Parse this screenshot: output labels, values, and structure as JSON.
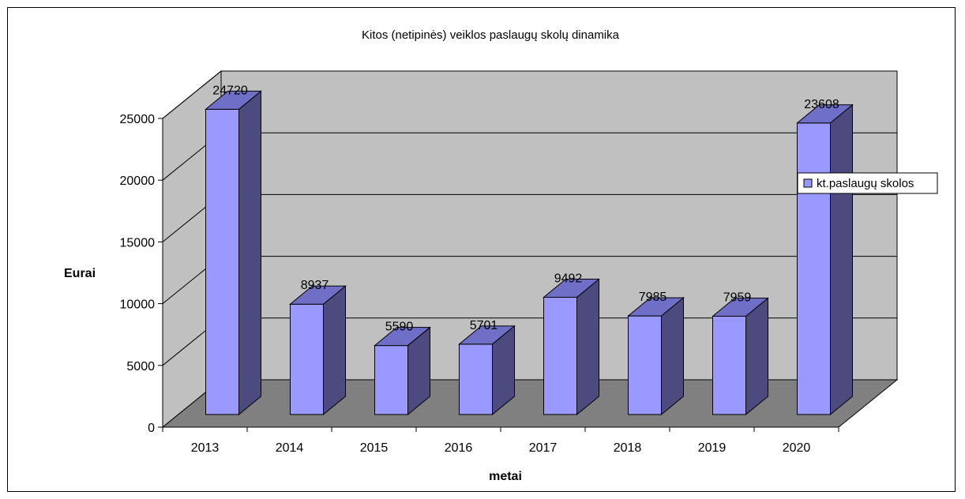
{
  "chart_data": {
    "type": "bar",
    "title": "Kitos (netipinės) veiklos paslaugų skolų dinamika",
    "xlabel": "metai",
    "ylabel": "Eurai",
    "categories": [
      "2013",
      "2014",
      "2015",
      "2016",
      "2017",
      "2018",
      "2019",
      "2020"
    ],
    "series": [
      {
        "name": "kt.paslaugų skolos",
        "values": [
          24720,
          8937,
          5590,
          5701,
          9492,
          7985,
          7959,
          23608
        ],
        "labels": [
          "24720",
          "8937",
          "5590",
          "5701",
          "9492",
          "7985",
          "7959",
          "23608"
        ]
      }
    ],
    "ylim": [
      0,
      25000
    ],
    "yticks": [
      0,
      5000,
      10000,
      15000,
      20000,
      25000
    ],
    "ytick_labels": [
      "0",
      "5000",
      "10000",
      "15000",
      "20000",
      "25000"
    ],
    "grid": true,
    "legend_position": "right",
    "style": "3d",
    "colors": {
      "bar_front": "#9999ff",
      "bar_side": "#4d4a80",
      "bar_top": "#6f6fc8",
      "wall": "#c0c0c0",
      "floor": "#808080"
    }
  }
}
